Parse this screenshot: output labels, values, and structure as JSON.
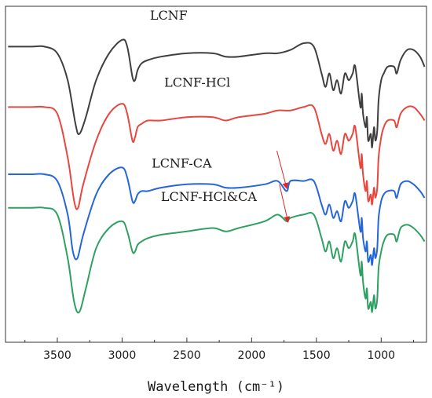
{
  "chart_data": {
    "type": "line",
    "title": "",
    "xlabel": "Wavelength (cm⁻¹)",
    "ylabel": "",
    "x_reversed": true,
    "xlim": [
      3900,
      650
    ],
    "ylim": [
      0,
      100
    ],
    "xticks": [
      3500,
      3000,
      2500,
      2000,
      1500,
      1000
    ],
    "xtick_labels": [
      "3500",
      "3000",
      "2500",
      "2000",
      "1500",
      "1000"
    ],
    "y_tick_labels_shown": false,
    "grid": false,
    "legend": "none (series labelled inline above each trace)",
    "series": [
      {
        "name": "LCNF",
        "color": "#3f3f3f",
        "x": [
          3880,
          3700,
          3600,
          3500,
          3420,
          3360,
          3330,
          3280,
          3200,
          3100,
          3000,
          2960,
          2920,
          2900,
          2880,
          2850,
          2800,
          2700,
          2500,
          2300,
          2200,
          2100,
          1900,
          1800,
          1700,
          1600,
          1520,
          1460,
          1430,
          1400,
          1370,
          1340,
          1310,
          1280,
          1250,
          1220,
          1200,
          1160,
          1150,
          1140,
          1120,
          1110,
          1100,
          1080,
          1070,
          1055,
          1045,
          1030,
          1020,
          1000,
          980,
          950,
          900,
          880,
          850,
          800,
          750,
          700,
          665
        ],
        "y": [
          88,
          88,
          88,
          86,
          78,
          65,
          62,
          67,
          78,
          86,
          90,
          88,
          79,
          78,
          81,
          83,
          84,
          85,
          86,
          86,
          85,
          85,
          86,
          86,
          87,
          89,
          88,
          80,
          76,
          80,
          75,
          78,
          74,
          80,
          78,
          80,
          82,
          70,
          74,
          68,
          64,
          67,
          60,
          62,
          58,
          64,
          60,
          63,
          72,
          78,
          80,
          82,
          82,
          80,
          84,
          87,
          87,
          85,
          82
        ]
      },
      {
        "name": "LCNF-HCl",
        "color": "#e8473f",
        "x": [
          3880,
          3700,
          3600,
          3500,
          3420,
          3370,
          3340,
          3300,
          3200,
          3100,
          3000,
          2960,
          2920,
          2900,
          2880,
          2850,
          2800,
          2700,
          2500,
          2300,
          2200,
          2100,
          1900,
          1800,
          1700,
          1600,
          1520,
          1460,
          1430,
          1400,
          1370,
          1340,
          1310,
          1280,
          1250,
          1220,
          1200,
          1160,
          1150,
          1140,
          1120,
          1110,
          1100,
          1080,
          1070,
          1055,
          1045,
          1030,
          1020,
          1000,
          980,
          950,
          900,
          880,
          850,
          800,
          750,
          700,
          665
        ],
        "y": [
          70,
          70,
          70,
          68,
          55,
          42,
          40,
          47,
          60,
          68,
          71,
          68,
          60,
          61,
          64,
          65,
          66,
          66,
          67,
          67,
          66,
          67,
          68,
          69,
          69,
          70,
          70,
          62,
          59,
          62,
          57,
          60,
          56,
          62,
          60,
          62,
          64,
          52,
          56,
          50,
          45,
          48,
          42,
          44,
          41,
          46,
          43,
          46,
          55,
          61,
          64,
          66,
          66,
          64,
          68,
          70,
          70,
          68,
          66
        ]
      },
      {
        "name": "LCNF-CA",
        "color": "#2566d8",
        "x": [
          3880,
          3700,
          3600,
          3500,
          3420,
          3380,
          3345,
          3300,
          3200,
          3100,
          3000,
          2960,
          2920,
          2900,
          2880,
          2850,
          2800,
          2700,
          2500,
          2300,
          2200,
          2100,
          1900,
          1800,
          1730,
          1700,
          1600,
          1520,
          1460,
          1430,
          1400,
          1370,
          1340,
          1310,
          1280,
          1250,
          1220,
          1200,
          1160,
          1150,
          1140,
          1120,
          1110,
          1100,
          1080,
          1070,
          1055,
          1045,
          1030,
          1020,
          1000,
          980,
          950,
          900,
          880,
          850,
          800,
          750,
          700,
          665
        ],
        "y": [
          50,
          50,
          50,
          48,
          38,
          27,
          25,
          32,
          44,
          50,
          52,
          49,
          42,
          42,
          44,
          45,
          45,
          46,
          47,
          47,
          46,
          46,
          47,
          48,
          45,
          48,
          48,
          48,
          41,
          38,
          41,
          37,
          39,
          36,
          42,
          40,
          42,
          44,
          33,
          37,
          31,
          27,
          30,
          24,
          26,
          23,
          28,
          25,
          28,
          37,
          42,
          44,
          45,
          45,
          43,
          47,
          48,
          47,
          45,
          43
        ]
      },
      {
        "name": "LCNF-HCl&CA",
        "color": "#2fa062",
        "x": [
          3880,
          3700,
          3600,
          3500,
          3420,
          3370,
          3330,
          3280,
          3200,
          3100,
          3000,
          2960,
          2920,
          2900,
          2880,
          2850,
          2800,
          2700,
          2500,
          2300,
          2200,
          2100,
          1900,
          1800,
          1730,
          1700,
          1600,
          1520,
          1460,
          1430,
          1400,
          1370,
          1340,
          1310,
          1280,
          1250,
          1220,
          1200,
          1160,
          1150,
          1140,
          1120,
          1110,
          1100,
          1080,
          1070,
          1055,
          1045,
          1030,
          1020,
          1000,
          980,
          950,
          900,
          880,
          850,
          800,
          750,
          700,
          665
        ],
        "y": [
          40,
          40,
          40,
          38,
          25,
          12,
          9,
          16,
          28,
          34,
          36,
          33,
          27,
          27,
          29,
          30,
          31,
          32,
          33,
          34,
          33,
          34,
          36,
          38,
          36,
          37,
          38,
          38,
          31,
          27,
          30,
          25,
          28,
          24,
          30,
          28,
          30,
          32,
          20,
          24,
          18,
          13,
          16,
          10,
          12,
          9,
          14,
          10,
          13,
          22,
          27,
          30,
          32,
          32,
          30,
          34,
          35,
          34,
          32,
          30
        ]
      }
    ],
    "labels": [
      {
        "key": "lcnf",
        "text": "LCNF",
        "x": 2640,
        "y": 96
      },
      {
        "key": "lcnf_hcl",
        "text": "LCNF-HCl",
        "x": 2420,
        "y": 76
      },
      {
        "key": "lcnf_ca",
        "text": "LCNF-CA",
        "x": 2540,
        "y": 52
      },
      {
        "key": "lcnf_hclca",
        "text": "LCNF-HCl&CA",
        "x": 2330,
        "y": 42
      }
    ],
    "annotations": [
      {
        "type": "arrow",
        "color": "#e0262b",
        "tip_x": 1730,
        "tip_y": 46,
        "tail_x": 1805,
        "tail_y": 57
      },
      {
        "type": "arrow",
        "color": "#e0262b",
        "tip_x": 1720,
        "tip_y": 36,
        "tail_x": 1785,
        "tail_y": 47
      }
    ]
  }
}
